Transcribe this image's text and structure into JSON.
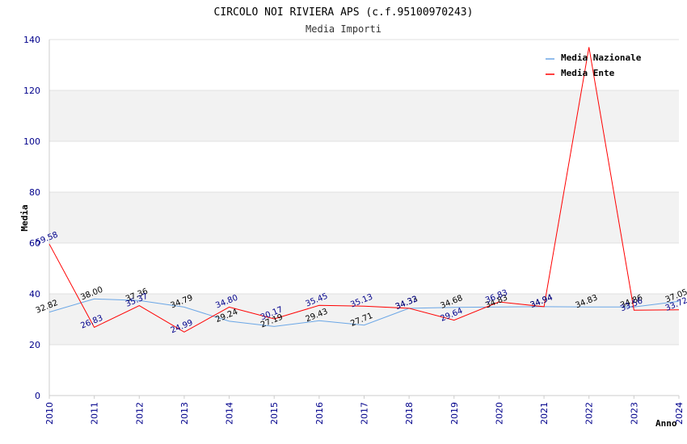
{
  "chart_data": {
    "type": "line",
    "title": "CIRCOLO NOI RIVIERA APS (c.f.95100970243)",
    "subtitle": "Media Importi",
    "xlabel": "Anno",
    "ylabel": "Media",
    "ylim": [
      0,
      140
    ],
    "yticks": [
      "0",
      "20",
      "40",
      "60",
      "80",
      "100",
      "120",
      "140"
    ],
    "categories": [
      "2010",
      "2011",
      "2012",
      "2013",
      "2014",
      "2015",
      "2016",
      "2017",
      "2018",
      "2019",
      "2020",
      "2021",
      "2022",
      "2023",
      "2024"
    ],
    "legend_position": "top-right",
    "series": [
      {
        "name": "Media Nazionale",
        "color": "#6aa6e6",
        "label_color": "#000000",
        "values": [
          32.82,
          38.0,
          37.36,
          34.79,
          29.24,
          27.19,
          29.43,
          27.71,
          34.33,
          34.68,
          34.83,
          34.94,
          34.83,
          34.86,
          37.05
        ],
        "labels": [
          "32.82",
          "38.00",
          "37.36",
          "34.79",
          "29.24",
          "27.19",
          "29.43",
          "27.71",
          "34.33",
          "34.68",
          "34.83",
          "34.94",
          "34.83",
          "34.86",
          "37.05"
        ]
      },
      {
        "name": "Media Ente",
        "color": "#ff0000",
        "label_color": "#00008b",
        "values": [
          59.58,
          26.83,
          35.37,
          24.99,
          34.8,
          30.17,
          35.45,
          35.13,
          34.32,
          29.64,
          36.83,
          34.94,
          137.0,
          33.56,
          33.72
        ],
        "labels": [
          "59.58",
          "26.83",
          "35.37",
          "24.99",
          "34.80",
          "30.17",
          "35.45",
          "35.13",
          "34.32",
          "29.64",
          "36.83",
          "34.94",
          "",
          "33.56",
          "33.72"
        ]
      }
    ]
  }
}
